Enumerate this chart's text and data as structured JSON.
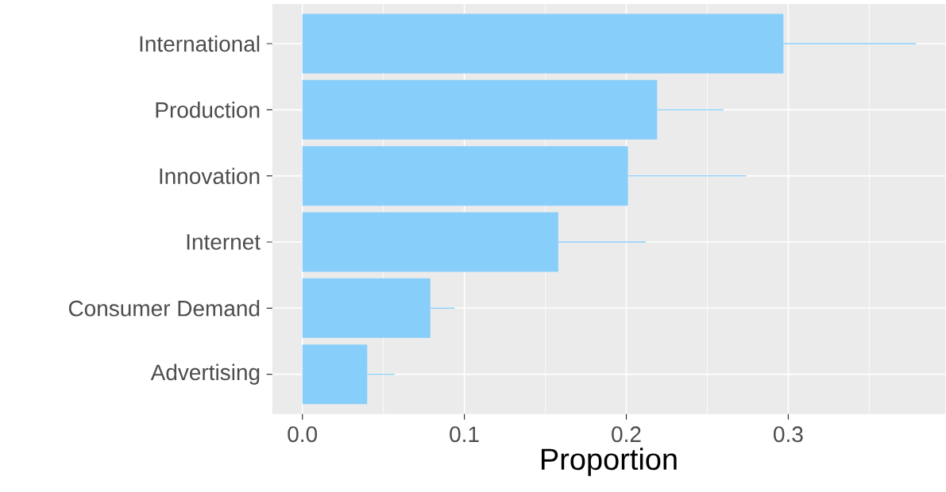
{
  "chart_data": {
    "type": "bar",
    "orientation": "horizontal",
    "xlabel": "Proportion",
    "categories": [
      "International",
      "Production",
      "Innovation",
      "Internet",
      "Consumer Demand",
      "Advertising"
    ],
    "values": [
      0.297,
      0.219,
      0.201,
      0.158,
      0.079,
      0.04
    ],
    "errors": [
      [
        0.297,
        0.379
      ],
      [
        0.219,
        0.26
      ],
      [
        0.201,
        0.274
      ],
      [
        0.158,
        0.212
      ],
      [
        0.079,
        0.094
      ],
      [
        0.04,
        0.057
      ]
    ],
    "color": "#87cefa",
    "xlim": [
      -0.0186,
      0.397
    ],
    "xticks": [
      {
        "value": 0,
        "label": "0.0"
      },
      0.1,
      0.2,
      0.3,
      {
        "value": 0.05,
        "label": null
      },
      {
        "value": 0.15,
        "label": null
      },
      {
        "value": 0.25,
        "label": null
      },
      {
        "value": 0.35,
        "label": null
      }
    ],
    "grid": true
  }
}
